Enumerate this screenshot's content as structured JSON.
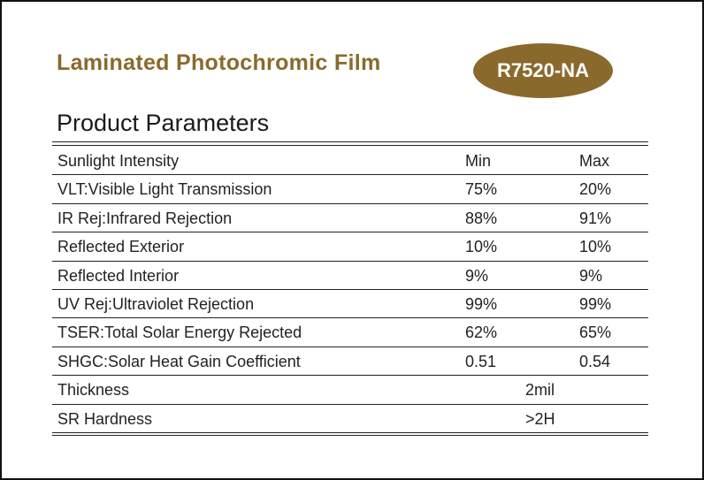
{
  "header": {
    "title": "Laminated Photochromic Film",
    "badge": "R7520-NA"
  },
  "section_title": "Product Parameters",
  "table": {
    "columns": [
      "Sunlight Intensity",
      "Min",
      "Max"
    ],
    "rows": [
      [
        "VLT:Visible Light Transmission",
        "75%",
        "20%"
      ],
      [
        "IR Rej:Infrared Rejection",
        "88%",
        "91%"
      ],
      [
        "Reflected Exterior",
        "10%",
        "10%"
      ],
      [
        "Reflected Interior",
        "9%",
        "9%"
      ],
      [
        "UV Rej:Ultraviolet Rejection",
        "99%",
        "99%"
      ],
      [
        "TSER:Total Solar Energy Rejected",
        "62%",
        "65%"
      ],
      [
        "SHGC:Solar Heat Gain Coefficient",
        "0.51",
        "0.54"
      ],
      [
        "Thickness",
        "2mil"
      ],
      [
        "SR Hardness",
        ">2H"
      ]
    ]
  }
}
